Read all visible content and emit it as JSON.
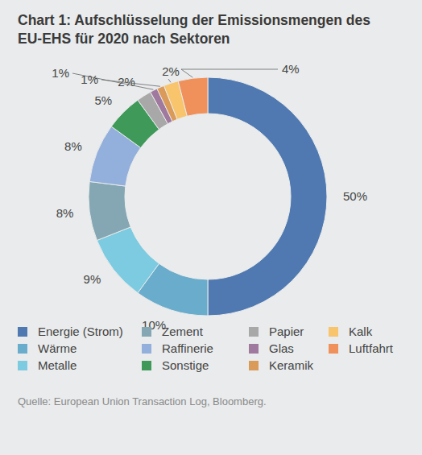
{
  "chart_data": {
    "type": "donut",
    "title": "Chart 1: Aufschlüsselung der Emissionsmengen des EU-EHS für 2020 nach Sektoren",
    "source": "Quelle: European Union Transaction Log, Bloomberg.",
    "categories": [
      "Energie (Strom)",
      "Wärme",
      "Metalle",
      "Zement",
      "Raffinerie",
      "Sonstige",
      "Papier",
      "Glas",
      "Keramik",
      "Kalk",
      "Luftfahrt"
    ],
    "values": [
      50,
      10,
      9,
      8,
      8,
      5,
      2,
      1,
      1,
      2,
      4
    ],
    "value_labels": [
      "50%",
      "10%",
      "9%",
      "8%",
      "8%",
      "5%",
      "2%",
      "1%",
      "1%",
      "2%",
      "4%"
    ],
    "colors": [
      "#4f79b0",
      "#6aaccb",
      "#7ccbe0",
      "#84a7b3",
      "#93afdc",
      "#3f9a5a",
      "#a8a8a8",
      "#a07a9e",
      "#d99a5a",
      "#f8c46c",
      "#f0905a"
    ],
    "data_labels": true,
    "legend": "bottom"
  }
}
